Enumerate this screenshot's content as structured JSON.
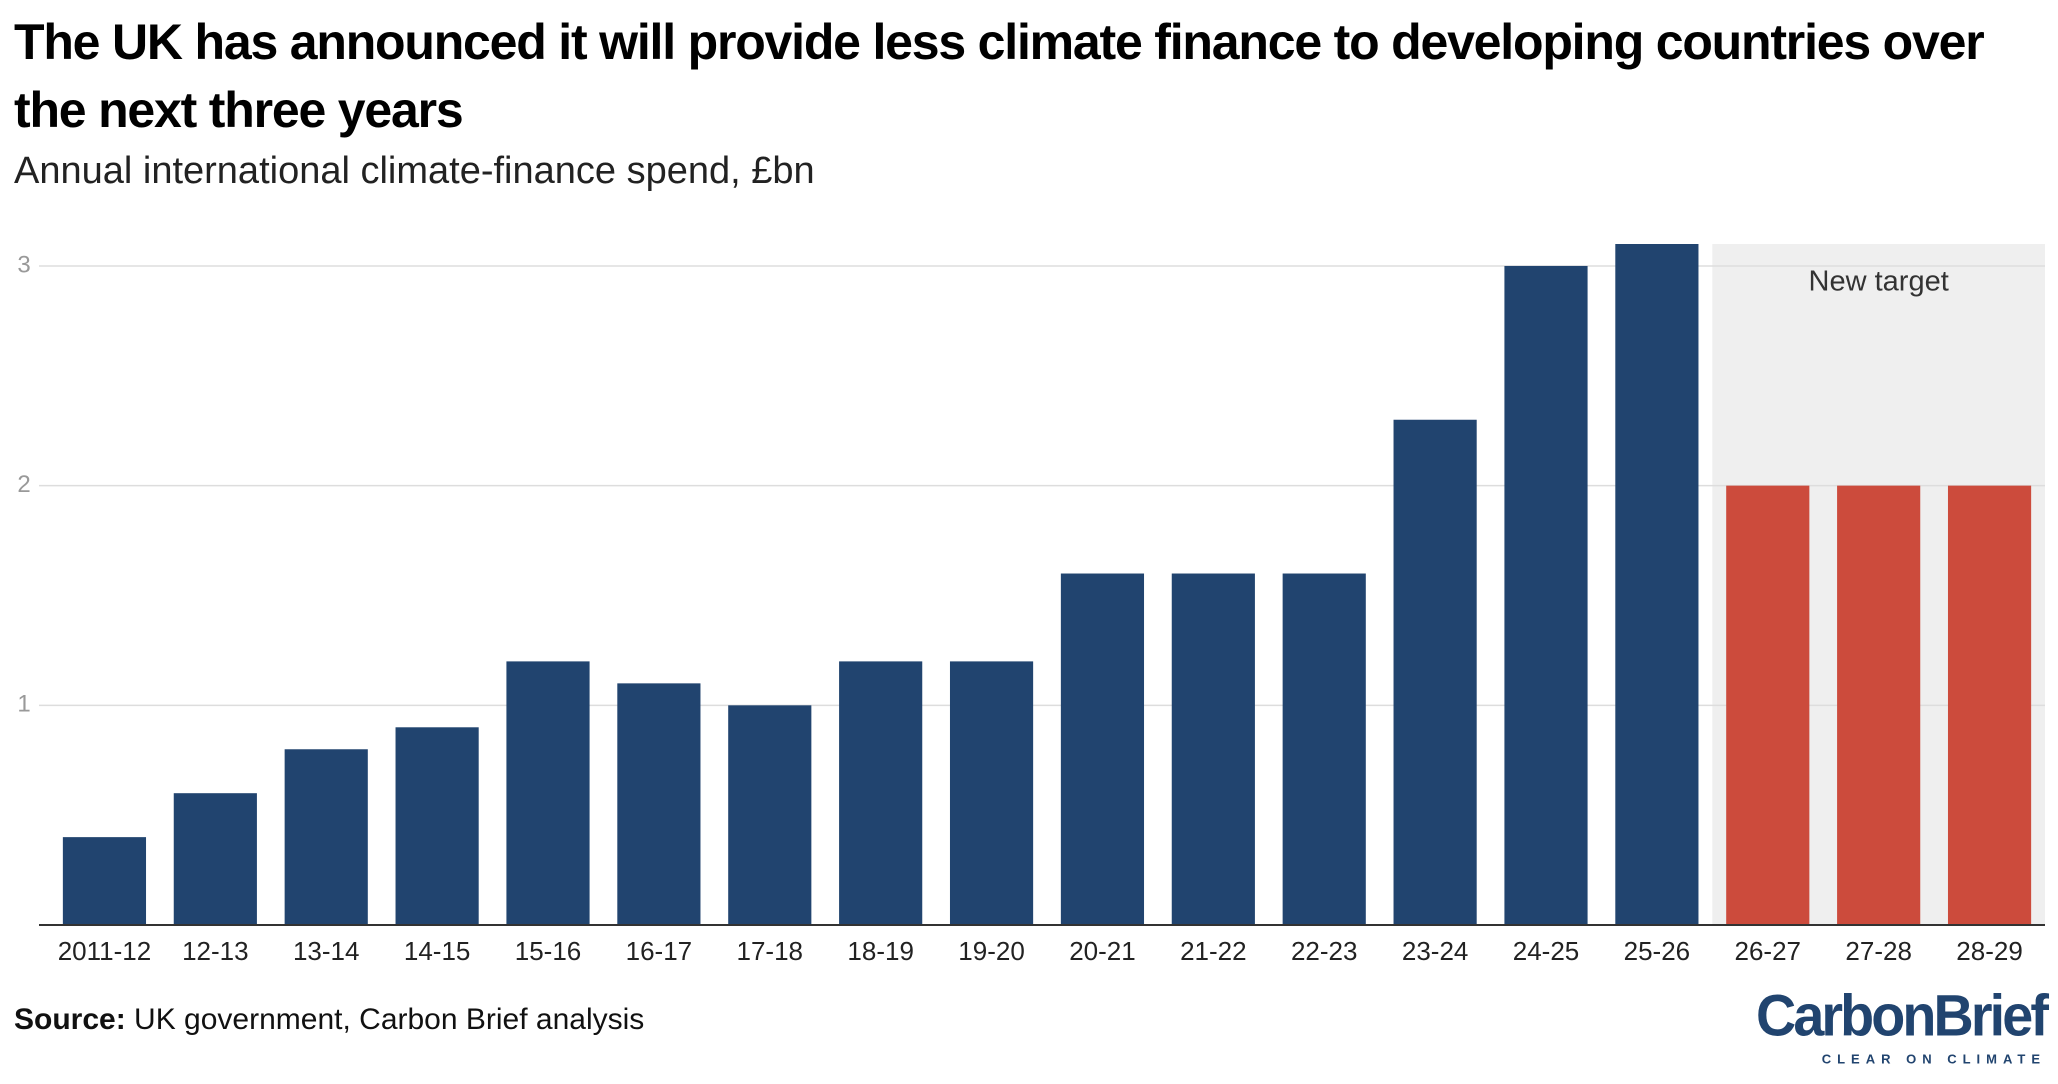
{
  "chart_data": {
    "type": "bar",
    "title": "The UK has announced it will provide less climate finance to developing countries over the next three years",
    "subtitle": "Annual international climate-finance spend, £bn",
    "categories": [
      "2011-12",
      "12-13",
      "13-14",
      "14-15",
      "15-16",
      "16-17",
      "17-18",
      "18-19",
      "19-20",
      "20-21",
      "21-22",
      "22-23",
      "23-24",
      "24-25",
      "25-26",
      "26-27",
      "27-28",
      "28-29"
    ],
    "values": [
      0.4,
      0.6,
      0.8,
      0.9,
      1.2,
      1.1,
      1.0,
      1.2,
      1.2,
      1.6,
      1.6,
      1.6,
      2.3,
      3.0,
      3.1,
      2,
      2,
      2
    ],
    "colors": [
      "#21446f",
      "#21446f",
      "#21446f",
      "#21446f",
      "#21446f",
      "#21446f",
      "#21446f",
      "#21446f",
      "#21446f",
      "#21446f",
      "#21446f",
      "#21446f",
      "#21446f",
      "#21446f",
      "#21446f",
      "#cc4b3c",
      "#cc4b3c",
      "#cc4b3c"
    ],
    "ylim": [
      0,
      3.1
    ],
    "yticks": [
      1,
      2,
      3
    ],
    "grid": true,
    "shaded_range": {
      "label": "New target",
      "start": "26-27",
      "end": "28-29",
      "color": "#efefef"
    },
    "source_label": "Source:",
    "source": "UK government, Carbon Brief analysis",
    "logo": {
      "name": "CarbonBrief",
      "tagline": "CLEAR ON CLIMATE"
    }
  }
}
